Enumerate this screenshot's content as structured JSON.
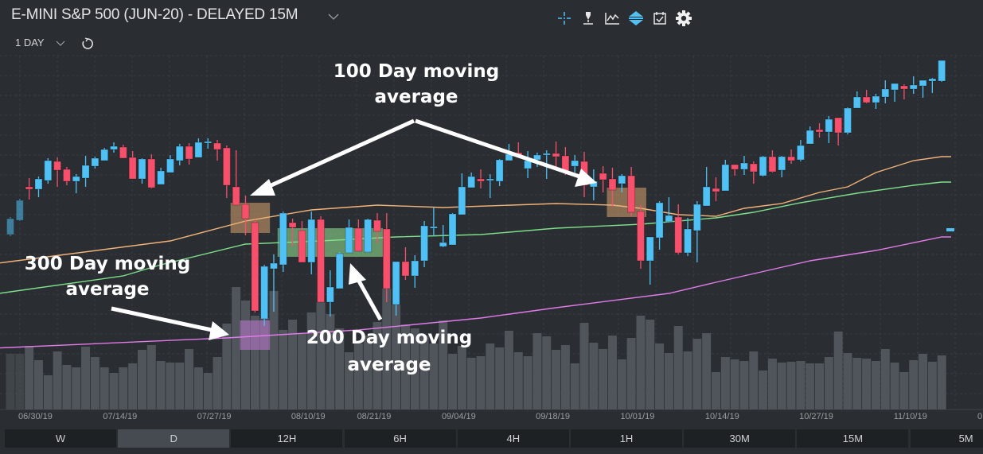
{
  "header": {
    "title": "E-MINI S&P 500 (JUN-20) - DELAYED 15M",
    "interval": "1 DAY"
  },
  "toolbar": {
    "icons": [
      "crosshair-icon",
      "drawing-pen-icon",
      "indicator-chart-icon",
      "chart-scale-icon",
      "calendar-icon",
      "settings-gear-icon"
    ]
  },
  "timeframes": [
    {
      "label": "W",
      "selected": false
    },
    {
      "label": "D",
      "selected": true
    },
    {
      "label": "12H",
      "selected": false
    },
    {
      "label": "6H",
      "selected": false
    },
    {
      "label": "4H",
      "selected": false
    },
    {
      "label": "1H",
      "selected": false
    },
    {
      "label": "30M",
      "selected": false
    },
    {
      "label": "15M",
      "selected": false
    },
    {
      "label": "5M",
      "selected": false
    }
  ],
  "annotations": {
    "ma100": [
      "100 Day moving",
      "average"
    ],
    "ma200": [
      "200 Day moving",
      "average"
    ],
    "ma300": [
      "300 Day moving",
      "average"
    ]
  },
  "colors": {
    "background": "#2a2d31",
    "up_candle": "#4fc1f5",
    "down_candle": "#f7506c",
    "volume": "#50555c",
    "ma_orange": "#f2b37a",
    "ma_green": "#7ee08a",
    "ma_pink": "#e07be8",
    "highlight_orange": "#c99a6a",
    "highlight_green": "#8fd88f",
    "highlight_purple": "#b676c8"
  },
  "chart_data": {
    "type": "candlestick",
    "title": "",
    "xlabel": "",
    "ylabel": "",
    "x_tick_labels": [
      "06/30/19",
      "07/14/19",
      "07/27/19",
      "08/10/19",
      "08/21/19",
      "09/04/19",
      "09/18/19",
      "10/01/19",
      "10/14/19",
      "10/27/19",
      "11/10/19",
      "0"
    ],
    "grid": true,
    "ohlc_fields": [
      "date",
      "open",
      "high",
      "low",
      "close",
      "volume_relative"
    ],
    "candles": [
      [
        "06/26/19",
        2905,
        2927,
        2903,
        2925,
        70
      ],
      [
        "06/27/19",
        2923,
        2950,
        2922,
        2948,
        70
      ],
      [
        "06/28/19",
        2965,
        2976,
        2949,
        2962,
        80
      ],
      [
        "07/01/19",
        2962,
        2978,
        2952,
        2975,
        62
      ],
      [
        "07/02/19",
        2973,
        3001,
        2969,
        2998,
        43
      ],
      [
        "07/03/19",
        2997,
        3002,
        2965,
        2986,
        73
      ],
      [
        "07/05/19",
        2987,
        2990,
        2967,
        2972,
        56
      ],
      [
        "07/08/19",
        2972,
        2981,
        2957,
        2978,
        53
      ],
      [
        "07/09/19",
        2976,
        3004,
        2965,
        2992,
        79
      ],
      [
        "07/10/19",
        2991,
        3003,
        2988,
        3001,
        66
      ],
      [
        "07/11/19",
        2998,
        3014,
        2998,
        3012,
        53
      ],
      [
        "07/12/19",
        3012,
        3021,
        3008,
        3016,
        46
      ],
      [
        "07/15/19",
        3015,
        3018,
        3001,
        3001,
        53
      ],
      [
        "07/16/19",
        3002,
        3010,
        2975,
        2975,
        58
      ],
      [
        "07/17/19",
        2975,
        3001,
        2969,
        3000,
        75
      ],
      [
        "07/18/19",
        3000,
        3006,
        2963,
        2964,
        81
      ],
      [
        "07/19/19",
        2968,
        2989,
        2968,
        2985,
        61
      ],
      [
        "07/22/19",
        2983,
        3005,
        2983,
        3000,
        59
      ],
      [
        "07/23/19",
        2998,
        3019,
        2992,
        3016,
        59
      ],
      [
        "07/24/19",
        3016,
        3020,
        2993,
        3000,
        76
      ],
      [
        "07/25/19",
        3002,
        3026,
        3002,
        3021,
        53
      ],
      [
        "07/26/19",
        3020,
        3026,
        3013,
        3022,
        46
      ],
      [
        "07/29/19",
        3020,
        3024,
        2998,
        3012,
        66
      ],
      [
        "07/30/19",
        3014,
        3017,
        2951,
        2967,
        108
      ],
      [
        "07/31/19",
        2965,
        3011,
        2942,
        2942,
        154
      ],
      [
        "08/01/19",
        2943,
        2954,
        2904,
        2925,
        137
      ],
      [
        "08/02/19",
        2920,
        2924,
        2807,
        2809,
        118
      ],
      [
        "08/05/19",
        2799,
        2867,
        2790,
        2865,
        115
      ],
      [
        "08/06/19",
        2862,
        2880,
        2808,
        2869,
        149
      ],
      [
        "08/07/19",
        2867,
        2934,
        2858,
        2932,
        100
      ],
      [
        "08/08/19",
        2920,
        2925,
        2890,
        2914,
        113
      ],
      [
        "08/09/19",
        2910,
        2922,
        2870,
        2870,
        96
      ],
      [
        "08/12/19",
        2870,
        2934,
        2855,
        2924,
        122
      ],
      [
        "08/13/19",
        2924,
        2928,
        2820,
        2820,
        135
      ],
      [
        "08/14/19",
        2820,
        2860,
        2802,
        2839,
        120
      ],
      [
        "08/15/19",
        2837,
        2883,
        2837,
        2881,
        102
      ],
      [
        "08/16/19",
        2882,
        2924,
        2882,
        2914,
        72
      ],
      [
        "08/19/19",
        2913,
        2924,
        2884,
        2884,
        83
      ],
      [
        "08/20/19",
        2883,
        2925,
        2882,
        2924,
        93
      ],
      [
        "08/21/19",
        2923,
        2932,
        2894,
        2909,
        110
      ],
      [
        "08/22/19",
        2912,
        2932,
        2820,
        2837,
        152
      ],
      [
        "08/23/19",
        2817,
        2871,
        2803,
        2871,
        132
      ],
      [
        "08/26/19",
        2871,
        2889,
        2848,
        2853,
        107
      ],
      [
        "08/27/19",
        2853,
        2879,
        2838,
        2872,
        102
      ],
      [
        "08/28/19",
        2872,
        2922,
        2864,
        2916,
        93
      ],
      [
        "08/29/19",
        2913,
        2939,
        2903,
        2915,
        83
      ],
      [
        "08/30/19",
        2890,
        2917,
        2889,
        2895,
        112
      ],
      [
        "09/03/19",
        2892,
        2932,
        2892,
        2931,
        70
      ],
      [
        "09/04/19",
        2930,
        2982,
        2930,
        2965,
        80
      ],
      [
        "09/05/19",
        2964,
        2983,
        2964,
        2978,
        65
      ],
      [
        "09/06/19",
        2975,
        2987,
        2963,
        2972,
        67
      ],
      [
        "09/09/19",
        2973,
        2981,
        2951,
        2975,
        83
      ],
      [
        "09/10/19",
        2972,
        3000,
        2966,
        2999,
        78
      ],
      [
        "09/11/19",
        2998,
        3019,
        2998,
        3006,
        99
      ],
      [
        "09/12/19",
        3008,
        3021,
        3003,
        3005,
        72
      ],
      [
        "09/13/19",
        2988,
        3010,
        2976,
        2998,
        67
      ],
      [
        "09/16/19",
        2999,
        3008,
        2990,
        3005,
        96
      ],
      [
        "09/17/19",
        3005,
        3011,
        2975,
        3007,
        92
      ],
      [
        "09/18/19",
        3007,
        3022,
        2988,
        3003,
        75
      ],
      [
        "09/19/19",
        3004,
        3015,
        2980,
        2985,
        81
      ],
      [
        "09/20/19",
        2991,
        3005,
        2983,
        2998,
        58
      ],
      [
        "09/23/19",
        2997,
        3009,
        2952,
        2967,
        109
      ],
      [
        "09/24/19",
        2965,
        2987,
        2948,
        2972,
        84
      ],
      [
        "09/25/19",
        2982,
        2991,
        2958,
        2974,
        76
      ],
      [
        "09/26/19",
        2975,
        2989,
        2940,
        2961,
        93
      ],
      [
        "09/27/19",
        2969,
        2981,
        2958,
        2979,
        63
      ],
      [
        "09/30/19",
        2979,
        2990,
        2928,
        2933,
        90
      ],
      [
        "10/01/19",
        2934,
        2942,
        2862,
        2872,
        118
      ],
      [
        "10/02/19",
        2872,
        2902,
        2842,
        2902,
        113
      ],
      [
        "10/03/19",
        2901,
        2947,
        2886,
        2945,
        83
      ],
      [
        "10/04/19",
        2921,
        2952,
        2921,
        2929,
        71
      ],
      [
        "10/07/19",
        2927,
        2943,
        2880,
        2882,
        105
      ],
      [
        "10/08/19",
        2882,
        2926,
        2878,
        2912,
        73
      ],
      [
        "10/09/19",
        2910,
        2947,
        2870,
        2943,
        89
      ],
      [
        "10/10/19",
        2941,
        2990,
        2941,
        2965,
        96
      ],
      [
        "10/11/19",
        2963,
        2977,
        2947,
        2959,
        47
      ],
      [
        "10/14/19",
        2960,
        2999,
        2960,
        2993,
        66
      ],
      [
        "10/15/19",
        2993,
        2993,
        2979,
        2987,
        63
      ],
      [
        "10/16/19",
        2987,
        3004,
        2980,
        2995,
        61
      ],
      [
        "10/17/19",
        2994,
        2997,
        2969,
        2984,
        73
      ],
      [
        "10/18/19",
        2979,
        3004,
        2978,
        3003,
        49
      ],
      [
        "10/21/19",
        3003,
        3011,
        2983,
        2984,
        64
      ],
      [
        "10/22/19",
        2986,
        3004,
        2977,
        3003,
        59
      ],
      [
        "10/23/19",
        3003,
        3012,
        2994,
        2998,
        60
      ],
      [
        "10/24/19",
        2999,
        3024,
        2997,
        3017,
        61
      ],
      [
        "10/25/19",
        3019,
        3041,
        3019,
        3036,
        58
      ],
      [
        "10/28/19",
        3037,
        3045,
        3027,
        3034,
        58
      ],
      [
        "10/29/19",
        3034,
        3054,
        3020,
        3050,
        66
      ],
      [
        "10/30/19",
        3052,
        3052,
        3017,
        3033,
        98
      ],
      [
        "10/31/19",
        3033,
        3065,
        3031,
        3064,
        71
      ],
      [
        "11/01/19",
        3064,
        3085,
        3064,
        3078,
        65
      ],
      [
        "11/04/19",
        3078,
        3087,
        3070,
        3071,
        64
      ],
      [
        "11/05/19",
        3071,
        3082,
        3063,
        3079,
        61
      ],
      [
        "11/06/19",
        3078,
        3099,
        3070,
        3088,
        76
      ],
      [
        "11/07/19",
        3087,
        3095,
        3072,
        3095,
        59
      ],
      [
        "11/08/19",
        3092,
        3094,
        3075,
        3088,
        47
      ],
      [
        "11/11/19",
        3088,
        3104,
        3082,
        3093,
        62
      ],
      [
        "11/12/19",
        3092,
        3099,
        3077,
        3099,
        70
      ],
      [
        "11/13/19",
        3098,
        3102,
        3083,
        3101,
        60
      ],
      [
        "11/14/19",
        3098,
        3124,
        3097,
        3124,
        68
      ]
    ],
    "price_marker": 2911,
    "moving_averages": [
      {
        "color": "#f2b37a",
        "points": [
          [
            "06/26/19",
            2871
          ],
          [
            "07/22/19",
            2897
          ],
          [
            "08/01/19",
            2922
          ],
          [
            "08/12/19",
            2936
          ],
          [
            "08/21/19",
            2942
          ],
          [
            "08/30/19",
            2939
          ],
          [
            "09/18/19",
            2944
          ],
          [
            "09/26/19",
            2942
          ],
          [
            "10/01/19",
            2938
          ],
          [
            "10/07/19",
            2930
          ],
          [
            "10/11/19",
            2928
          ],
          [
            "10/16/19",
            2938
          ],
          [
            "10/22/19",
            2944
          ],
          [
            "10/28/19",
            2958
          ],
          [
            "10/31/19",
            2965
          ],
          [
            "11/05/19",
            2983
          ],
          [
            "11/11/19",
            2998
          ],
          [
            "11/14/19",
            3003
          ]
        ]
      },
      {
        "color": "#7ee08a",
        "points": [
          [
            "06/26/19",
            2833
          ],
          [
            "07/15/19",
            2853
          ],
          [
            "07/19/19",
            2867
          ],
          [
            "08/01/19",
            2893
          ],
          [
            "08/13/19",
            2897
          ],
          [
            "08/23/19",
            2902
          ],
          [
            "09/06/19",
            2905
          ],
          [
            "09/18/19",
            2913
          ],
          [
            "10/01/19",
            2918
          ],
          [
            "10/11/19",
            2926
          ],
          [
            "10/17/19",
            2933
          ],
          [
            "10/24/19",
            2945
          ],
          [
            "11/01/19",
            2957
          ],
          [
            "11/11/19",
            2967
          ],
          [
            "11/14/19",
            2971
          ]
        ]
      },
      {
        "color": "#e07be8",
        "points": [
          [
            "06/26/19",
            2763
          ],
          [
            "07/30/19",
            2775
          ],
          [
            "08/19/19",
            2785
          ],
          [
            "09/06/19",
            2800
          ],
          [
            "09/18/19",
            2813
          ],
          [
            "10/04/19",
            2831
          ],
          [
            "10/11/19",
            2845
          ],
          [
            "10/25/19",
            2872
          ],
          [
            "11/05/19",
            2885
          ],
          [
            "11/14/19",
            2902
          ]
        ]
      }
    ],
    "highlight_boxes": [
      {
        "color": "#c99a6a",
        "from": "07/31/19",
        "to": "08/05/19",
        "low": 2907,
        "high": 2945
      },
      {
        "color": "#c99a6a",
        "from": "09/26/19",
        "to": "10/01/19",
        "low": 2927,
        "high": 2964
      },
      {
        "color": "#8fd88f",
        "from": "08/07/19",
        "to": "08/21/19",
        "low": 2877,
        "high": 2913
      },
      {
        "color": "#b676c8",
        "from": "08/01/19",
        "to": "08/05/19",
        "low": 2760,
        "high": 2797
      }
    ]
  }
}
